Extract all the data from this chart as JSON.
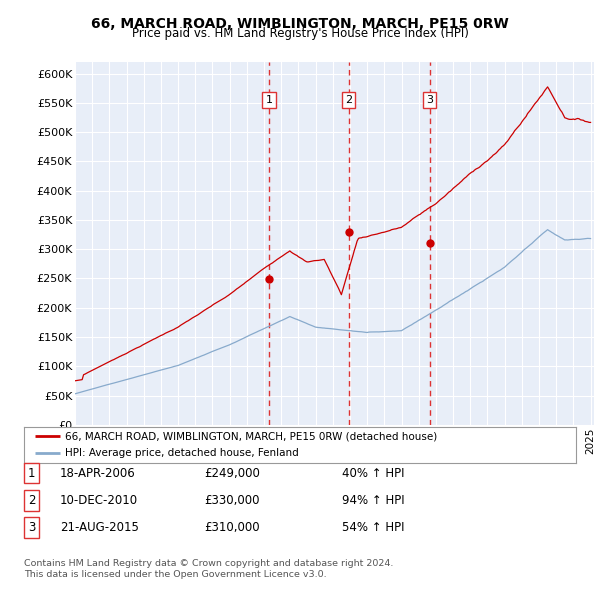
{
  "title1": "66, MARCH ROAD, WIMBLINGTON, MARCH, PE15 0RW",
  "title2": "Price paid vs. HM Land Registry's House Price Index (HPI)",
  "ylim": [
    0,
    620000
  ],
  "yticks": [
    0,
    50000,
    100000,
    150000,
    200000,
    250000,
    300000,
    350000,
    400000,
    450000,
    500000,
    550000,
    600000
  ],
  "ytick_labels": [
    "£0",
    "£50K",
    "£100K",
    "£150K",
    "£200K",
    "£250K",
    "£300K",
    "£350K",
    "£400K",
    "£450K",
    "£500K",
    "£550K",
    "£600K"
  ],
  "plot_bg": "#e8eef8",
  "grid_color": "#ffffff",
  "sale_prices": [
    249000,
    330000,
    310000
  ],
  "sale_labels": [
    "1",
    "2",
    "3"
  ],
  "sale_pcts": [
    "40% ↑ HPI",
    "94% ↑ HPI",
    "54% ↑ HPI"
  ],
  "sale_date_strs": [
    "18-APR-2006",
    "10-DEC-2010",
    "21-AUG-2015"
  ],
  "sale_price_strs": [
    "£249,000",
    "£330,000",
    "£310,000"
  ],
  "legend_line1": "66, MARCH ROAD, WIMBLINGTON, MARCH, PE15 0RW (detached house)",
  "legend_line2": "HPI: Average price, detached house, Fenland",
  "footer1": "Contains HM Land Registry data © Crown copyright and database right 2024.",
  "footer2": "This data is licensed under the Open Government Licence v3.0.",
  "red_color": "#cc0000",
  "blue_color": "#88aacc",
  "vline_color": "#dd3333",
  "sale_year_floats": [
    2006.29,
    2010.92,
    2015.64
  ]
}
